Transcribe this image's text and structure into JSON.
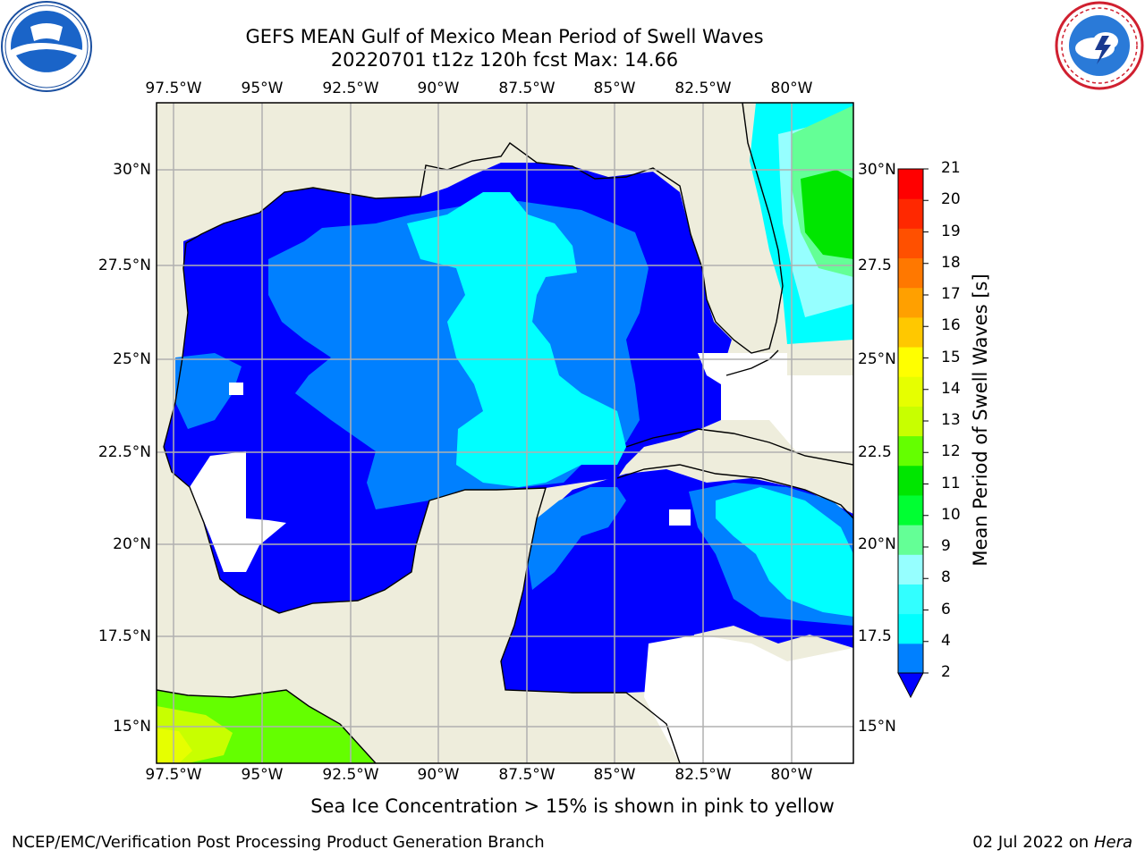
{
  "title": {
    "line1": "GEFS MEAN Gulf of Mexico Mean Period of Swell Waves",
    "line2": "20220701 t12z 120h fcst   Max: 14.66"
  },
  "map": {
    "lon_labels": [
      "97.5°W",
      "95°W",
      "92.5°W",
      "90°W",
      "87.5°W",
      "85°W",
      "82.5°W",
      "80°W"
    ],
    "lat_labels": [
      "30°N",
      "27.5°N",
      "25°N",
      "22.5°N",
      "20°N",
      "17.5°N",
      "15°N"
    ],
    "lat_labels_right": [
      "30°N",
      "27.5",
      "25°N",
      "22.5",
      "20°N",
      "17.5",
      "15°N"
    ],
    "colors": {
      "land": "#eeeddc",
      "no_data": "#ffffff",
      "gridline": "#b0b0b0"
    }
  },
  "colorbar": {
    "title": "Mean Period of Swell Waves [s]",
    "ticks": [
      "21",
      "20",
      "19",
      "18",
      "17",
      "16",
      "15",
      "14",
      "13",
      "12",
      "11",
      "10",
      "9",
      "8",
      "6",
      "4",
      "2"
    ],
    "colors": [
      "#ff0000",
      "#ff2800",
      "#ff5000",
      "#ff7800",
      "#ffa000",
      "#ffc800",
      "#ffff00",
      "#e6ff00",
      "#c8ff00",
      "#64ff00",
      "#00e600",
      "#00ff32",
      "#64ff96",
      "#96ffff",
      "#32ffff",
      "#00ffff",
      "#0080ff"
    ],
    "extend_color": "#0000ff"
  },
  "note": "Sea Ice Concentration > 15% is shown in pink to yellow",
  "footer": {
    "left": "NCEP/EMC/Verification Post Processing Product Generation Branch",
    "date": "02 Jul 2022 on ",
    "host": "Hera"
  },
  "logos": {
    "left_icon": "noaa-logo-icon",
    "right_icon": "nws-logo-icon"
  }
}
